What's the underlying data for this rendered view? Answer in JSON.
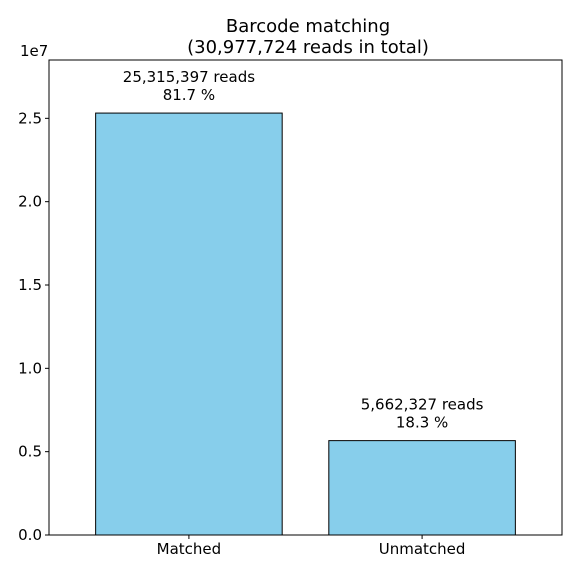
{
  "chart_data": {
    "type": "bar",
    "title": "Barcode matching",
    "subtitle": "(30,977,724 reads in total)",
    "xlabel": "",
    "ylabel": "",
    "categories": [
      "Matched",
      "Unmatched"
    ],
    "values": [
      25315397,
      5662327
    ],
    "bar_labels": [
      {
        "reads": "25,315,397 reads",
        "percent": "81.7 %"
      },
      {
        "reads": "5,662,327 reads",
        "percent": "18.3 %"
      }
    ],
    "ylim": [
      0,
      28500000
    ],
    "y_scale_label": "1e7",
    "y_ticks": [
      0,
      5000000,
      10000000,
      15000000,
      20000000,
      25000000
    ],
    "y_tick_labels": [
      "0.0",
      "0.5",
      "1.0",
      "1.5",
      "2.0",
      "2.5"
    ],
    "grid": false,
    "bar_color": "#87ceeb",
    "edge_color": "#000000"
  }
}
